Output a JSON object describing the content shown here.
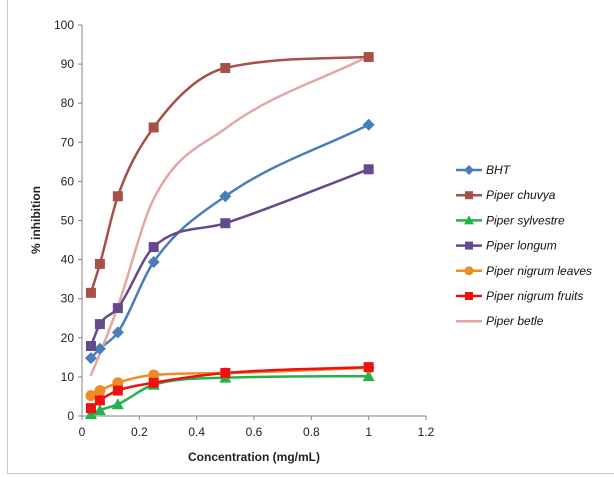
{
  "chart_data": {
    "type": "line",
    "title": "",
    "xlabel": "Concentration (mg/mL)",
    "ylabel": "% inhibition",
    "xlim": [
      0,
      1.2
    ],
    "ylim": [
      0,
      100
    ],
    "xticks": [
      "0",
      "0.2",
      "0.4",
      "0.6",
      "0.8",
      "1",
      "1.2"
    ],
    "yticks": [
      "0",
      "10",
      "20",
      "30",
      "40",
      "50",
      "60",
      "70",
      "80",
      "90",
      "100"
    ],
    "grid": false,
    "legend_position": "right",
    "series": [
      {
        "name": "BHT",
        "color": "#4a7ebb",
        "marker": "diamond",
        "x": [
          0.03125,
          0.0625,
          0.125,
          0.25,
          0.5,
          1
        ],
        "y": [
          14.8,
          17.2,
          21.4,
          39.4,
          56.2,
          74.5
        ]
      },
      {
        "name": "Piper chuvya",
        "color": "#a84f4a",
        "marker": "square",
        "x": [
          0.03125,
          0.0625,
          0.125,
          0.25,
          0.5,
          1
        ],
        "y": [
          31.5,
          38.9,
          56.2,
          73.8,
          89.0,
          91.8
        ]
      },
      {
        "name": "Piper sylvestre",
        "color": "#22b24c",
        "marker": "triangle",
        "x": [
          0.03125,
          0.0625,
          0.125,
          0.25,
          0.5,
          1
        ],
        "y": [
          0.5,
          1.5,
          3.0,
          8.0,
          9.8,
          10.2
        ]
      },
      {
        "name": "Piper longum",
        "color": "#644a8c",
        "marker": "square",
        "x": [
          0.03125,
          0.0625,
          0.125,
          0.25,
          0.5,
          1
        ],
        "y": [
          17.9,
          23.5,
          27.6,
          43.2,
          49.3,
          63.1
        ]
      },
      {
        "name": "Piper nigrum leaves",
        "color": "#f08a24",
        "marker": "circle",
        "x": [
          0.03125,
          0.0625,
          0.125,
          0.25,
          0.5,
          1
        ],
        "y": [
          5.2,
          6.5,
          8.5,
          10.5,
          11.0,
          12.3
        ]
      },
      {
        "name": "Piper nigrum fruits",
        "color": "#ee1111",
        "marker": "square",
        "x": [
          0.03125,
          0.0625,
          0.125,
          0.25,
          0.5,
          1
        ],
        "y": [
          2.0,
          4.0,
          6.5,
          8.5,
          11.0,
          12.5
        ]
      },
      {
        "name": "Piper betle",
        "color": "#e4a6a4",
        "marker": "none",
        "x": [
          0.03125,
          0.0625,
          0.125,
          0.25,
          0.5,
          1
        ],
        "y": [
          10.5,
          16.0,
          28.0,
          55.5,
          73.5,
          92.0
        ]
      }
    ]
  }
}
